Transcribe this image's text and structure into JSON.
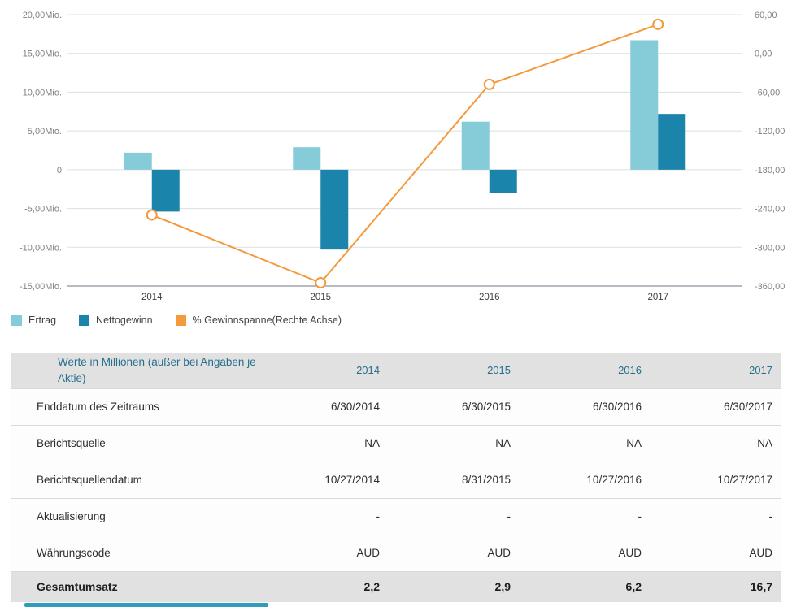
{
  "colors": {
    "ertrag": "#85ccd8",
    "nettogewinn": "#1b84ab",
    "line": "#f5993d",
    "grid": "#dce0e3",
    "axis_line": "#b5bbc0",
    "axis_text": "#7d8185",
    "x_label_text": "#3f3f3f",
    "header_text": "#26708e",
    "scrollbar": "#2f9cbb"
  },
  "chart_data": {
    "type": "combo-bar-line",
    "categories": [
      "2014",
      "2015",
      "2016",
      "2017"
    ],
    "series": [
      {
        "name": "Ertrag",
        "type": "bar",
        "axis": "left",
        "color": "#85ccd8",
        "values": [
          2.2,
          2.9,
          6.2,
          16.7
        ]
      },
      {
        "name": "Nettogewinn",
        "type": "bar",
        "axis": "left",
        "color": "#1b84ab",
        "values": [
          -5.4,
          -10.3,
          -3.0,
          7.2
        ]
      },
      {
        "name": "% Gewinnspanne(Rechte Achse)",
        "type": "line",
        "axis": "right",
        "color": "#f5993d",
        "values": [
          -250,
          -355,
          -48,
          45
        ]
      }
    ],
    "left_axis": {
      "min": -15,
      "max": 20,
      "tick_step": 5,
      "tick_labels": [
        "20,00Mio.",
        "15,00Mio.",
        "10,00Mio.",
        "5,00Mio.",
        "0",
        "-5,00Mio.",
        "-10,00Mio.",
        "-15,00Mio."
      ]
    },
    "right_axis": {
      "min": -360,
      "max": 60,
      "tick_step": 60,
      "tick_labels": [
        "60,00",
        "0,00",
        "-60,00",
        "-120,00",
        "-180,00",
        "-240,00",
        "-300,00",
        "-360,00"
      ]
    },
    "grid": true,
    "legend_position": "bottom-left"
  },
  "table": {
    "header": {
      "label": "Werte in Millionen (außer bei Angaben je Aktie)",
      "years": [
        "2014",
        "2015",
        "2016",
        "2017"
      ]
    },
    "rows": [
      {
        "label": "Enddatum des Zeitraums",
        "values": [
          "6/30/2014",
          "6/30/2015",
          "6/30/2016",
          "6/30/2017"
        ],
        "emphasis": false
      },
      {
        "label": "Berichtsquelle",
        "values": [
          "NA",
          "NA",
          "NA",
          "NA"
        ],
        "emphasis": false
      },
      {
        "label": "Berichtsquellendatum",
        "values": [
          "10/27/2014",
          "8/31/2015",
          "10/27/2016",
          "10/27/2017"
        ],
        "emphasis": false
      },
      {
        "label": "Aktualisierung",
        "values": [
          "-",
          "-",
          "-",
          "-"
        ],
        "emphasis": false
      },
      {
        "label": "Währungscode",
        "values": [
          "AUD",
          "AUD",
          "AUD",
          "AUD"
        ],
        "emphasis": false
      },
      {
        "label": "Gesamtumsatz",
        "values": [
          "2,2",
          "2,9",
          "6,2",
          "16,7"
        ],
        "emphasis": true
      }
    ]
  }
}
